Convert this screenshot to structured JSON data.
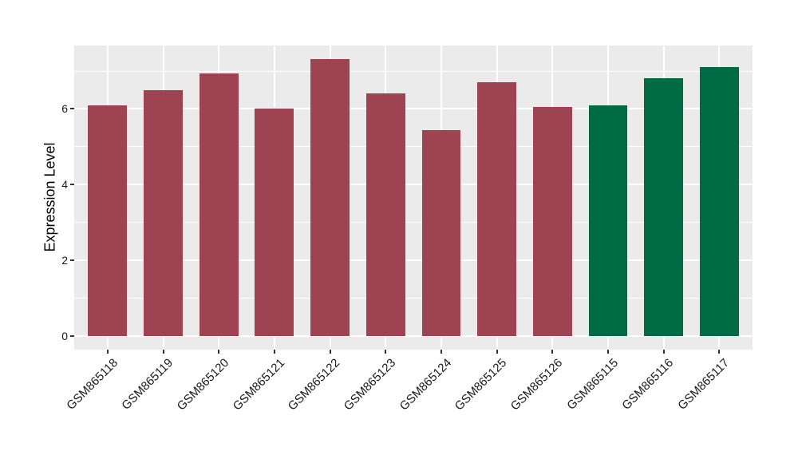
{
  "chart_data": {
    "type": "bar",
    "title": "",
    "xlabel": "",
    "ylabel": "Expression Level",
    "categories": [
      "GSM865118",
      "GSM865119",
      "GSM865120",
      "GSM865121",
      "GSM865122",
      "GSM865123",
      "GSM865124",
      "GSM865125",
      "GSM865126",
      "GSM865115",
      "GSM865116",
      "GSM865117"
    ],
    "values": [
      6.09,
      6.49,
      6.94,
      6.02,
      7.32,
      6.41,
      5.43,
      6.7,
      6.05,
      6.1,
      6.81,
      7.11
    ],
    "bar_groups": [
      "red",
      "red",
      "red",
      "red",
      "red",
      "red",
      "red",
      "red",
      "red",
      "green",
      "green",
      "green"
    ],
    "group_colors": {
      "red": "#9E4352",
      "green": "#006B45"
    },
    "ylim": [
      -0.366,
      7.676
    ],
    "yticks_major": [
      0,
      2,
      4,
      6
    ],
    "yticks_minor": [
      1,
      3,
      5,
      7
    ],
    "ytick_labels": [
      "0",
      "2",
      "4",
      "6"
    ],
    "grid": "on",
    "legend": "none",
    "x_label_angle_deg": 45,
    "bar_width_fraction": 0.7,
    "panel_background": "#EBEBEB",
    "grid_color": "#FFFFFF",
    "tick_color": "#333333",
    "text_color": "#1a1a1a"
  }
}
